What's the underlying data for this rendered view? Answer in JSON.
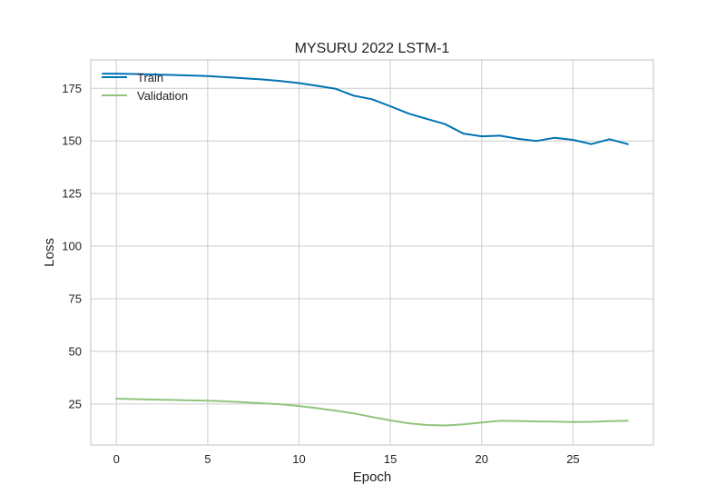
{
  "chart_data": {
    "type": "line",
    "title": "MYSURU 2022 LSTM-1",
    "xlabel": "Epoch",
    "ylabel": "Loss",
    "xlim": [
      -1.4,
      29.4
    ],
    "ylim": [
      5.5,
      188.5
    ],
    "xticks": [
      0,
      5,
      10,
      15,
      20,
      25
    ],
    "yticks": [
      25,
      50,
      75,
      100,
      125,
      150,
      175
    ],
    "grid": true,
    "legend_position": "upper-left",
    "series": [
      {
        "name": "Train",
        "color": "#0072b2",
        "x": [
          -0.75,
          0,
          1,
          2,
          3,
          4,
          5,
          6,
          7,
          8,
          9,
          10,
          11,
          12,
          13,
          14,
          15,
          16,
          17,
          18,
          19,
          20,
          21,
          22,
          23,
          24,
          25,
          26,
          27,
          28
        ],
        "values": [
          182.0,
          182.0,
          181.8,
          181.6,
          181.4,
          181.1,
          180.8,
          180.3,
          179.8,
          179.2,
          178.5,
          177.5,
          176.2,
          174.8,
          171.5,
          169.8,
          166.5,
          163.0,
          160.5,
          158.0,
          153.5,
          152.2,
          152.5,
          151.0,
          150.0,
          151.5,
          150.5,
          148.5,
          150.8,
          148.5
        ]
      },
      {
        "name": "Validation",
        "color": "#90c47d",
        "x": [
          0,
          1,
          2,
          3,
          4,
          5,
          6,
          7,
          8,
          9,
          10,
          11,
          12,
          13,
          14,
          15,
          16,
          17,
          18,
          19,
          20,
          21,
          22,
          23,
          24,
          25,
          26,
          27,
          28
        ],
        "values": [
          27.5,
          27.3,
          27.1,
          26.9,
          26.7,
          26.5,
          26.2,
          25.8,
          25.3,
          24.8,
          24.0,
          23.0,
          21.8,
          20.5,
          18.8,
          17.2,
          15.8,
          15.0,
          14.8,
          15.3,
          16.2,
          17.0,
          16.9,
          16.7,
          16.6,
          16.4,
          16.5,
          16.8,
          17.0
        ]
      }
    ]
  }
}
